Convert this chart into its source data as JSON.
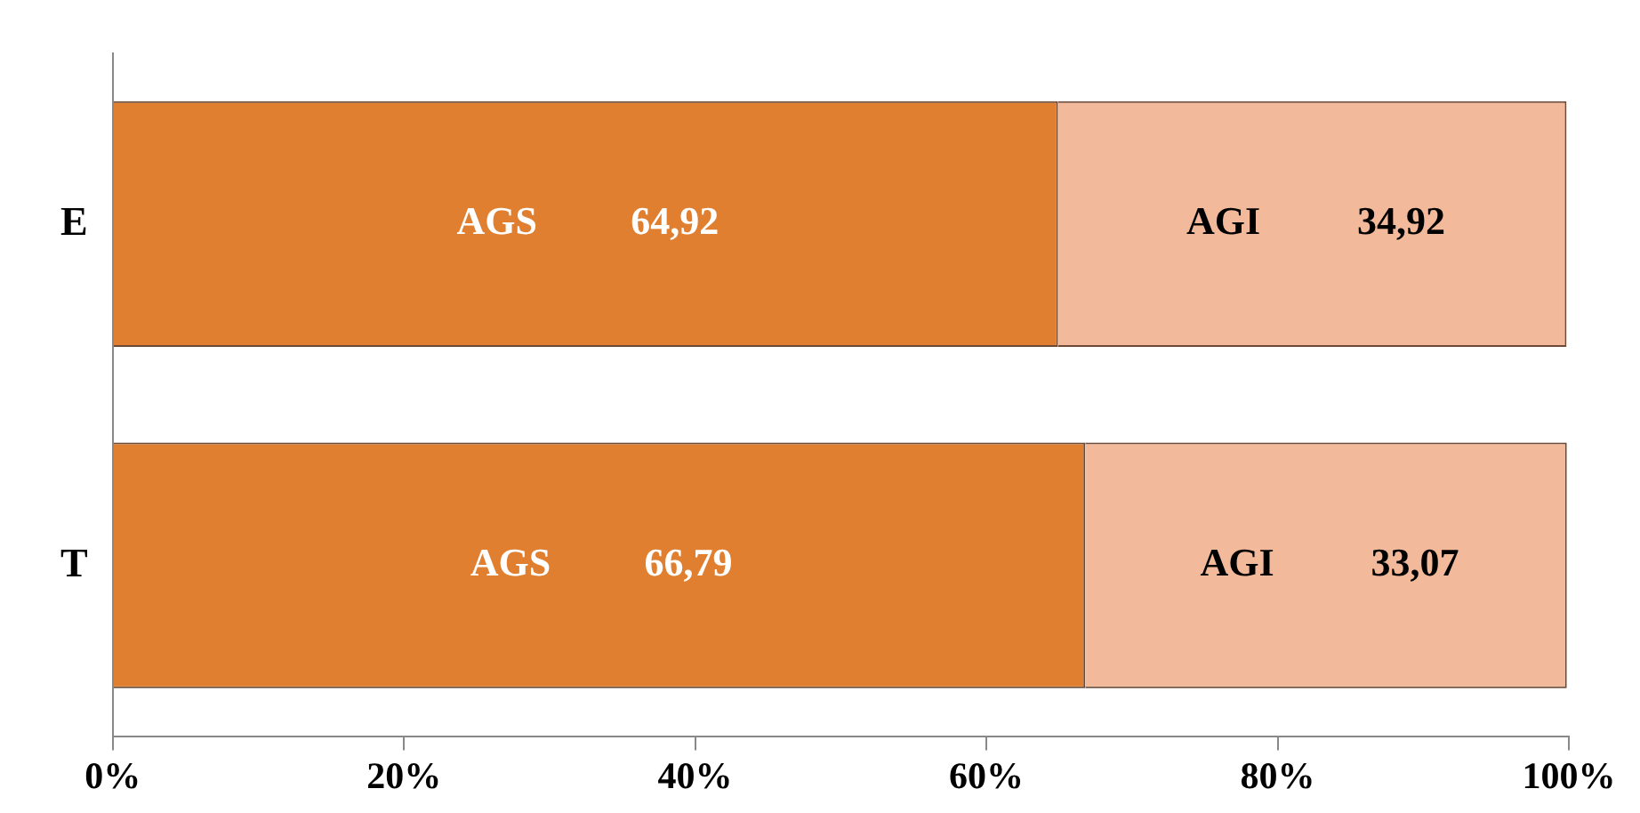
{
  "chart_data": {
    "type": "bar",
    "orientation": "horizontal",
    "stacked": true,
    "categories": [
      "E",
      "T"
    ],
    "series": [
      {
        "name": "AGS",
        "color": "#e07f30",
        "values": [
          64.92,
          66.79
        ],
        "value_labels": [
          "64,92",
          "66,79"
        ]
      },
      {
        "name": "AGI",
        "color": "#f2b99a",
        "values": [
          34.92,
          33.07
        ],
        "value_labels": [
          "34,92",
          "33,07"
        ]
      }
    ],
    "xlim": [
      0,
      100
    ],
    "xticks": [
      {
        "value": 0,
        "label": "0%"
      },
      {
        "value": 20,
        "label": "20%"
      },
      {
        "value": 40,
        "label": "40%"
      },
      {
        "value": 60,
        "label": "60%"
      },
      {
        "value": 80,
        "label": "80%"
      },
      {
        "value": 100,
        "label": "100%"
      }
    ],
    "grid": false,
    "legend": false
  }
}
